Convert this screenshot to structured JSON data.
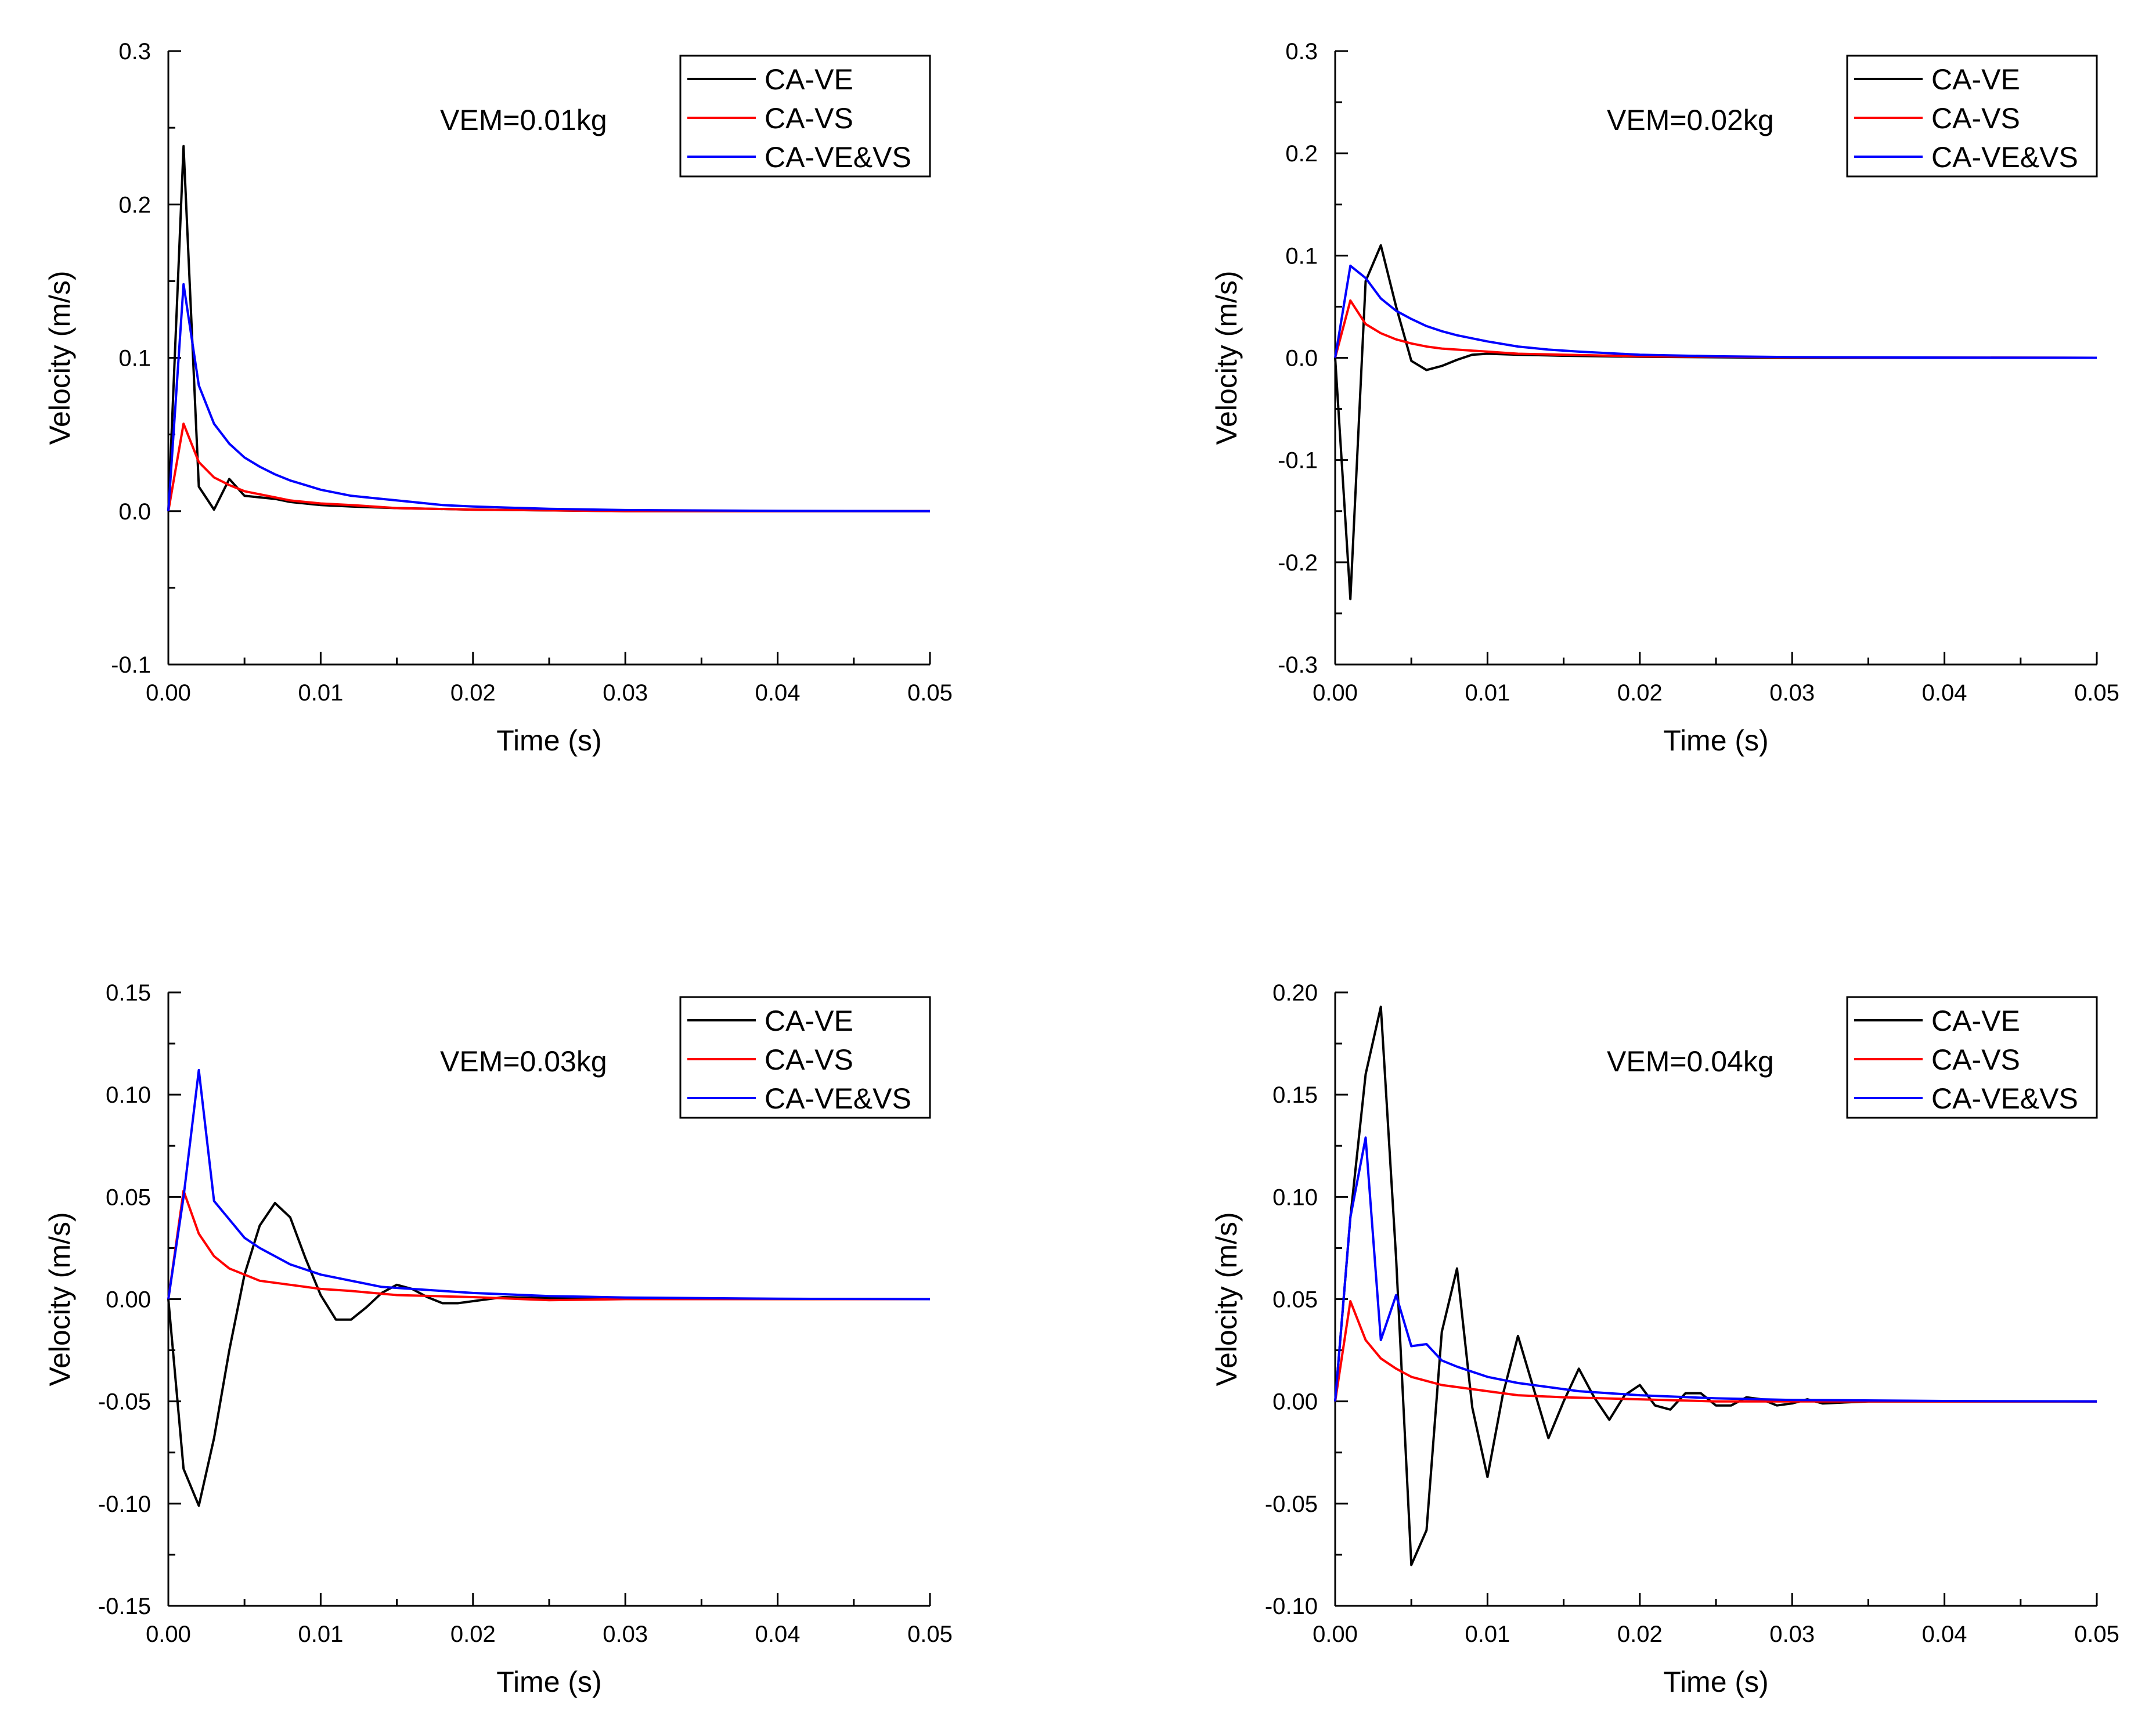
{
  "figure_title": "",
  "chart_data": [
    {
      "type": "line",
      "title": "",
      "annotation": "VEM=0.01kg",
      "xlabel": "Time (s)",
      "ylabel": "Velocity (m/s)",
      "xlim": [
        0,
        0.05
      ],
      "ylim": [
        -0.1,
        0.3
      ],
      "xticks": [
        "0.00",
        "0.01",
        "0.02",
        "0.03",
        "0.04",
        "0.05"
      ],
      "yticks": [
        "-0.1",
        "0.0",
        "0.1",
        "0.2",
        "0.3"
      ],
      "legend": "top-right",
      "series": [
        {
          "name": "CA-VE",
          "color": "#000000",
          "x": [
            0,
            0.001,
            0.002,
            0.003,
            0.004,
            0.005,
            0.006,
            0.007,
            0.008,
            0.01,
            0.012,
            0.015,
            0.02,
            0.03,
            0.05
          ],
          "y": [
            0,
            0.238,
            0.016,
            0.001,
            0.021,
            0.01,
            0.009,
            0.008,
            0.006,
            0.004,
            0.003,
            0.002,
            0.001,
            0.0,
            0.0
          ]
        },
        {
          "name": "CA-VS",
          "color": "#ff0000",
          "x": [
            0,
            0.001,
            0.002,
            0.003,
            0.004,
            0.005,
            0.006,
            0.007,
            0.008,
            0.01,
            0.012,
            0.015,
            0.02,
            0.025,
            0.03,
            0.05
          ],
          "y": [
            0,
            0.057,
            0.032,
            0.022,
            0.017,
            0.013,
            0.011,
            0.009,
            0.007,
            0.005,
            0.004,
            0.002,
            0.001,
            0.0005,
            0.0,
            0.0
          ]
        },
        {
          "name": "CA-VE&VS",
          "color": "#0000ff",
          "x": [
            0,
            0.001,
            0.002,
            0.003,
            0.004,
            0.005,
            0.006,
            0.007,
            0.008,
            0.009,
            0.01,
            0.012,
            0.014,
            0.016,
            0.018,
            0.02,
            0.025,
            0.03,
            0.04,
            0.05
          ],
          "y": [
            0,
            0.148,
            0.082,
            0.057,
            0.044,
            0.035,
            0.029,
            0.024,
            0.02,
            0.017,
            0.014,
            0.01,
            0.008,
            0.006,
            0.004,
            0.003,
            0.0015,
            0.0007,
            0.0002,
            0.0
          ]
        }
      ]
    },
    {
      "type": "line",
      "title": "",
      "annotation": "VEM=0.02kg",
      "xlabel": "Time (s)",
      "ylabel": "Velocity (m/s)",
      "xlim": [
        0,
        0.05
      ],
      "ylim": [
        -0.3,
        0.3
      ],
      "xticks": [
        "0.00",
        "0.01",
        "0.02",
        "0.03",
        "0.04",
        "0.05"
      ],
      "yticks": [
        "-0.3",
        "-0.2",
        "-0.1",
        "0.0",
        "0.1",
        "0.2",
        "0.3"
      ],
      "legend": "top-right",
      "series": [
        {
          "name": "CA-VE",
          "color": "#000000",
          "x": [
            0,
            0.001,
            0.002,
            0.003,
            0.004,
            0.005,
            0.006,
            0.007,
            0.008,
            0.009,
            0.01,
            0.012,
            0.015,
            0.02,
            0.03,
            0.05
          ],
          "y": [
            0,
            -0.236,
            0.075,
            0.11,
            0.05,
            -0.003,
            -0.012,
            -0.008,
            -0.002,
            0.003,
            0.004,
            0.003,
            0.002,
            0.001,
            0.0,
            0.0
          ]
        },
        {
          "name": "CA-VS",
          "color": "#ff0000",
          "x": [
            0,
            0.001,
            0.002,
            0.003,
            0.004,
            0.005,
            0.006,
            0.007,
            0.008,
            0.01,
            0.012,
            0.015,
            0.02,
            0.03,
            0.05
          ],
          "y": [
            0,
            0.056,
            0.033,
            0.024,
            0.018,
            0.014,
            0.011,
            0.009,
            0.008,
            0.006,
            0.004,
            0.003,
            0.0015,
            0.0005,
            0.0
          ]
        },
        {
          "name": "CA-VE&VS",
          "color": "#0000ff",
          "x": [
            0,
            0.001,
            0.002,
            0.003,
            0.004,
            0.005,
            0.006,
            0.007,
            0.008,
            0.01,
            0.012,
            0.014,
            0.016,
            0.02,
            0.025,
            0.03,
            0.04,
            0.05
          ],
          "y": [
            0,
            0.09,
            0.078,
            0.058,
            0.046,
            0.038,
            0.031,
            0.026,
            0.022,
            0.016,
            0.011,
            0.008,
            0.006,
            0.003,
            0.0015,
            0.0007,
            0.0002,
            0.0
          ]
        }
      ]
    },
    {
      "type": "line",
      "title": "",
      "annotation": "VEM=0.03kg",
      "xlabel": "Time (s)",
      "ylabel": "Velocity (m/s)",
      "xlim": [
        0,
        0.05
      ],
      "ylim": [
        -0.15,
        0.15
      ],
      "xticks": [
        "0.00",
        "0.01",
        "0.02",
        "0.03",
        "0.04",
        "0.05"
      ],
      "yticks": [
        "-0.15",
        "-0.10",
        "-0.05",
        "0.00",
        "0.05",
        "0.10",
        "0.15"
      ],
      "legend": "top-right",
      "series": [
        {
          "name": "CA-VE",
          "color": "#000000",
          "x": [
            0,
            0.001,
            0.002,
            0.003,
            0.004,
            0.005,
            0.006,
            0.007,
            0.008,
            0.009,
            0.01,
            0.011,
            0.012,
            0.013,
            0.014,
            0.015,
            0.016,
            0.017,
            0.018,
            0.019,
            0.02,
            0.022,
            0.025,
            0.03,
            0.05
          ],
          "y": [
            0,
            -0.083,
            -0.101,
            -0.068,
            -0.025,
            0.012,
            0.036,
            0.047,
            0.04,
            0.02,
            0.002,
            -0.01,
            -0.01,
            -0.004,
            0.003,
            0.007,
            0.005,
            0.001,
            -0.002,
            -0.002,
            -0.001,
            0.001,
            0.0005,
            0.0,
            0.0
          ]
        },
        {
          "name": "CA-VS",
          "color": "#ff0000",
          "x": [
            0,
            0.001,
            0.002,
            0.003,
            0.004,
            0.005,
            0.006,
            0.007,
            0.008,
            0.01,
            0.012,
            0.015,
            0.02,
            0.025,
            0.03,
            0.05
          ],
          "y": [
            0,
            0.053,
            0.032,
            0.021,
            0.015,
            0.012,
            0.009,
            0.008,
            0.007,
            0.005,
            0.004,
            0.002,
            0.001,
            -0.0005,
            0.0,
            0.0
          ]
        },
        {
          "name": "CA-VE&VS",
          "color": "#0000ff",
          "x": [
            0,
            0.001,
            0.002,
            0.003,
            0.004,
            0.005,
            0.006,
            0.007,
            0.008,
            0.01,
            0.012,
            0.014,
            0.016,
            0.018,
            0.02,
            0.025,
            0.03,
            0.04,
            0.05
          ],
          "y": [
            0,
            0.05,
            0.112,
            0.048,
            0.039,
            0.03,
            0.025,
            0.021,
            0.017,
            0.012,
            0.009,
            0.006,
            0.005,
            0.004,
            0.003,
            0.0015,
            0.0008,
            0.0002,
            0.0
          ]
        }
      ]
    },
    {
      "type": "line",
      "title": "",
      "annotation": "VEM=0.04kg",
      "xlabel": "Time (s)",
      "ylabel": "Velocity (m/s)",
      "xlim": [
        0,
        0.05
      ],
      "ylim": [
        -0.1,
        0.2
      ],
      "xticks": [
        "0.00",
        "0.01",
        "0.02",
        "0.03",
        "0.04",
        "0.05"
      ],
      "yticks": [
        "-0.10",
        "-0.05",
        "0.00",
        "0.05",
        "0.10",
        "0.15",
        "0.20"
      ],
      "legend": "top-right",
      "series": [
        {
          "name": "CA-VE",
          "color": "#000000",
          "x": [
            0,
            0.001,
            0.002,
            0.003,
            0.004,
            0.005,
            0.006,
            0.007,
            0.008,
            0.009,
            0.01,
            0.011,
            0.012,
            0.013,
            0.014,
            0.015,
            0.016,
            0.017,
            0.018,
            0.019,
            0.02,
            0.021,
            0.022,
            0.023,
            0.024,
            0.025,
            0.026,
            0.027,
            0.028,
            0.029,
            0.03,
            0.031,
            0.032,
            0.035,
            0.04,
            0.05
          ],
          "y": [
            0,
            0.09,
            0.16,
            0.193,
            0.07,
            -0.08,
            -0.063,
            0.034,
            0.065,
            -0.003,
            -0.037,
            0.003,
            0.032,
            0.007,
            -0.018,
            0.0,
            0.016,
            0.002,
            -0.009,
            0.003,
            0.008,
            -0.002,
            -0.004,
            0.004,
            0.004,
            -0.002,
            -0.002,
            0.002,
            0.001,
            -0.002,
            -0.001,
            0.001,
            -0.001,
            0.0,
            0.0,
            0.0
          ]
        },
        {
          "name": "CA-VS",
          "color": "#ff0000",
          "x": [
            0,
            0.001,
            0.002,
            0.003,
            0.004,
            0.005,
            0.006,
            0.007,
            0.008,
            0.01,
            0.012,
            0.015,
            0.02,
            0.025,
            0.03,
            0.05
          ],
          "y": [
            0,
            0.049,
            0.03,
            0.021,
            0.016,
            0.012,
            0.01,
            0.008,
            0.007,
            0.005,
            0.003,
            0.002,
            0.001,
            0.0,
            0.0,
            0.0
          ]
        },
        {
          "name": "CA-VE&VS",
          "color": "#0000ff",
          "x": [
            0,
            0.001,
            0.002,
            0.003,
            0.004,
            0.005,
            0.006,
            0.007,
            0.008,
            0.01,
            0.012,
            0.014,
            0.016,
            0.018,
            0.02,
            0.025,
            0.03,
            0.04,
            0.05
          ],
          "y": [
            0,
            0.09,
            0.129,
            0.03,
            0.052,
            0.027,
            0.028,
            0.02,
            0.017,
            0.012,
            0.009,
            0.007,
            0.005,
            0.004,
            0.003,
            0.0015,
            0.0007,
            0.0002,
            0.0
          ]
        }
      ]
    }
  ]
}
